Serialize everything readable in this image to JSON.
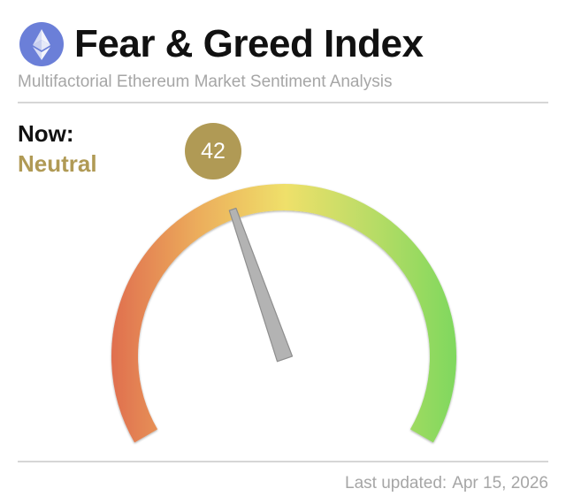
{
  "header": {
    "title": "Fear & Greed Index",
    "subtitle": "Multifactorial Ethereum Market Sentiment Analysis",
    "logo_icon": "ethereum-icon"
  },
  "current": {
    "now_label": "Now:",
    "status": "Neutral",
    "value": "42",
    "status_color": "#b09a55"
  },
  "gauge": {
    "min": 0,
    "max": 100,
    "value": 42,
    "colors": [
      "#e0704f",
      "#ecae5c",
      "#efe06a",
      "#b9dc66",
      "#7ed85d"
    ]
  },
  "footer": {
    "last_updated_label": "Last updated:",
    "last_updated_date": "Apr 15, 2026"
  }
}
